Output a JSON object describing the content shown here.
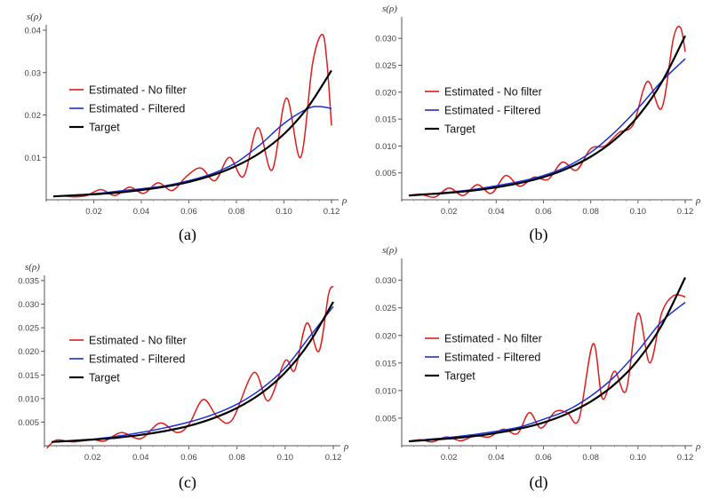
{
  "chart_data": [
    {
      "type": "line",
      "caption": "(a)",
      "xlabel": "ρ",
      "ylabel": "s(ρ)",
      "xlim": [
        0,
        0.12
      ],
      "ylim": [
        0,
        0.04
      ],
      "xticks": [
        "0.02",
        "0.04",
        "0.06",
        "0.08",
        "0.10",
        "0.12"
      ],
      "yticks": [
        "0.01",
        "0.02",
        "0.03",
        "0.04"
      ],
      "legend": [
        "Estimated - No filter",
        "Estimated - Filtered",
        "Target"
      ],
      "series": [
        {
          "name": "Estimated - No filter",
          "color": "#e01b1b",
          "x": [
            0.003,
            0.007,
            0.012,
            0.017,
            0.023,
            0.029,
            0.035,
            0.041,
            0.047,
            0.053,
            0.059,
            0.065,
            0.071,
            0.077,
            0.083,
            0.089,
            0.095,
            0.101,
            0.107,
            0.112,
            0.116,
            0.118,
            0.12
          ],
          "y": [
            0.0008,
            0.0009,
            0.0007,
            0.001,
            0.0024,
            0.001,
            0.003,
            0.0015,
            0.004,
            0.0022,
            0.0055,
            0.0075,
            0.0045,
            0.01,
            0.0055,
            0.017,
            0.007,
            0.024,
            0.01,
            0.032,
            0.039,
            0.033,
            0.0175
          ]
        },
        {
          "name": "Estimated - Filtered",
          "color": "#1a2fd6",
          "x": [
            0.003,
            0.01,
            0.02,
            0.03,
            0.04,
            0.05,
            0.06,
            0.07,
            0.08,
            0.09,
            0.1,
            0.11,
            0.115,
            0.12
          ],
          "y": [
            0.0008,
            0.001,
            0.0014,
            0.002,
            0.0026,
            0.0033,
            0.0045,
            0.0062,
            0.0088,
            0.013,
            0.018,
            0.0215,
            0.022,
            0.0215
          ]
        },
        {
          "name": "Target",
          "color": "#000000",
          "x": [
            0.003,
            0.01,
            0.02,
            0.03,
            0.04,
            0.05,
            0.06,
            0.07,
            0.08,
            0.09,
            0.1,
            0.11,
            0.12
          ],
          "y": [
            0.0008,
            0.001,
            0.0013,
            0.0017,
            0.0023,
            0.0031,
            0.0042,
            0.0058,
            0.008,
            0.0111,
            0.0155,
            0.0218,
            0.0305
          ]
        }
      ]
    },
    {
      "type": "line",
      "caption": "(b)",
      "xlabel": "ρ",
      "ylabel": "s(ρ)",
      "xlim": [
        0,
        0.12
      ],
      "ylim": [
        0,
        0.033
      ],
      "xticks": [
        "0.02",
        "0.04",
        "0.06",
        "0.08",
        "0.10",
        "0.12"
      ],
      "yticks": [
        "0.005",
        "0.010",
        "0.015",
        "0.020",
        "0.025",
        "0.030"
      ],
      "legend": [
        "Estimated - No filter",
        "Estimated - Filtered",
        "Target"
      ],
      "series": [
        {
          "name": "Estimated - No filter",
          "color": "#e01b1b",
          "x": [
            0.003,
            0.008,
            0.014,
            0.02,
            0.026,
            0.032,
            0.038,
            0.044,
            0.05,
            0.056,
            0.062,
            0.068,
            0.074,
            0.08,
            0.086,
            0.092,
            0.098,
            0.104,
            0.11,
            0.115,
            0.118,
            0.12
          ],
          "y": [
            0.0008,
            0.001,
            0.0005,
            0.0022,
            0.0008,
            0.0028,
            0.0012,
            0.0045,
            0.0025,
            0.0042,
            0.0038,
            0.007,
            0.0055,
            0.0095,
            0.01,
            0.0125,
            0.014,
            0.022,
            0.017,
            0.03,
            0.032,
            0.0275
          ]
        },
        {
          "name": "Estimated - Filtered",
          "color": "#1a2fd6",
          "x": [
            0.003,
            0.01,
            0.02,
            0.03,
            0.04,
            0.05,
            0.06,
            0.07,
            0.08,
            0.09,
            0.1,
            0.11,
            0.12
          ],
          "y": [
            0.0008,
            0.001,
            0.0014,
            0.0019,
            0.0026,
            0.0034,
            0.0045,
            0.0062,
            0.0088,
            0.0125,
            0.017,
            0.022,
            0.0262
          ]
        },
        {
          "name": "Target",
          "color": "#000000",
          "x": [
            0.003,
            0.01,
            0.02,
            0.03,
            0.04,
            0.05,
            0.06,
            0.07,
            0.08,
            0.09,
            0.1,
            0.11,
            0.12
          ],
          "y": [
            0.0008,
            0.001,
            0.0013,
            0.0017,
            0.0023,
            0.0031,
            0.0042,
            0.0058,
            0.008,
            0.0111,
            0.0155,
            0.0218,
            0.0305
          ]
        }
      ]
    },
    {
      "type": "line",
      "caption": "(c)",
      "xlabel": "ρ",
      "ylabel": "s(ρ)",
      "xlim": [
        0,
        0.12
      ],
      "ylim": [
        0,
        0.035
      ],
      "xticks": [
        "0.02",
        "0.04",
        "0.06",
        "0.08",
        "0.10",
        "0.12"
      ],
      "yticks": [
        "0.005",
        "0.010",
        "0.015",
        "0.020",
        "0.025",
        "0.030",
        "0.035"
      ],
      "legend": [
        "Estimated - No filter",
        "Estimated - Filtered",
        "Target"
      ],
      "series": [
        {
          "name": "Estimated - No filter",
          "color": "#e01b1b",
          "x": [
            0.001,
            0.005,
            0.012,
            0.02,
            0.025,
            0.032,
            0.04,
            0.048,
            0.055,
            0.06,
            0.066,
            0.072,
            0.078,
            0.087,
            0.093,
            0.1,
            0.104,
            0.109,
            0.114,
            0.118,
            0.12
          ],
          "y": [
            -0.0005,
            0.0012,
            0.0008,
            0.0013,
            0.001,
            0.0028,
            0.0015,
            0.0048,
            0.0028,
            0.0045,
            0.0098,
            0.006,
            0.0055,
            0.0155,
            0.0095,
            0.018,
            0.016,
            0.026,
            0.02,
            0.032,
            0.0338
          ]
        },
        {
          "name": "Estimated - Filtered",
          "color": "#1a2fd6",
          "x": [
            0.003,
            0.01,
            0.02,
            0.03,
            0.04,
            0.05,
            0.06,
            0.07,
            0.08,
            0.09,
            0.1,
            0.11,
            0.12
          ],
          "y": [
            0.0008,
            0.001,
            0.0014,
            0.002,
            0.0028,
            0.0038,
            0.005,
            0.0066,
            0.0088,
            0.012,
            0.0165,
            0.023,
            0.0295
          ]
        },
        {
          "name": "Target",
          "color": "#000000",
          "x": [
            0.003,
            0.01,
            0.02,
            0.03,
            0.04,
            0.05,
            0.06,
            0.07,
            0.08,
            0.09,
            0.1,
            0.11,
            0.12
          ],
          "y": [
            0.0008,
            0.001,
            0.0013,
            0.0017,
            0.0023,
            0.0031,
            0.0042,
            0.0058,
            0.008,
            0.0111,
            0.0155,
            0.0218,
            0.0305
          ]
        }
      ]
    },
    {
      "type": "line",
      "caption": "(d)",
      "xlabel": "ρ",
      "ylabel": "s(ρ)",
      "xlim": [
        0,
        0.12
      ],
      "ylim": [
        0,
        0.033
      ],
      "xticks": [
        "0.02",
        "0.04",
        "0.06",
        "0.08",
        "0.10",
        "0.12"
      ],
      "yticks": [
        "0.005",
        "0.010",
        "0.015",
        "0.020",
        "0.025",
        "0.030"
      ],
      "legend": [
        "Estimated - No filter",
        "Estimated - Filtered",
        "Target"
      ],
      "series": [
        {
          "name": "Estimated - No filter",
          "color": "#e01b1b",
          "x": [
            0.003,
            0.008,
            0.013,
            0.019,
            0.025,
            0.031,
            0.037,
            0.043,
            0.049,
            0.054,
            0.059,
            0.065,
            0.07,
            0.075,
            0.081,
            0.085,
            0.09,
            0.095,
            0.1,
            0.105,
            0.11,
            0.115,
            0.12
          ],
          "y": [
            0.0008,
            0.0011,
            0.0007,
            0.0016,
            0.0009,
            0.0018,
            0.0016,
            0.003,
            0.0022,
            0.006,
            0.0032,
            0.0062,
            0.006,
            0.0048,
            0.0185,
            0.0085,
            0.0135,
            0.01,
            0.024,
            0.015,
            0.024,
            0.0272,
            0.027
          ]
        },
        {
          "name": "Estimated - Filtered",
          "color": "#1a2fd6",
          "x": [
            0.003,
            0.01,
            0.02,
            0.03,
            0.04,
            0.05,
            0.06,
            0.07,
            0.08,
            0.09,
            0.1,
            0.11,
            0.12
          ],
          "y": [
            0.0008,
            0.0011,
            0.0015,
            0.002,
            0.0026,
            0.0034,
            0.0048,
            0.0064,
            0.009,
            0.0125,
            0.0172,
            0.0225,
            0.026
          ]
        },
        {
          "name": "Target",
          "color": "#000000",
          "x": [
            0.003,
            0.01,
            0.02,
            0.03,
            0.04,
            0.05,
            0.06,
            0.07,
            0.08,
            0.09,
            0.1,
            0.11,
            0.12
          ],
          "y": [
            0.0008,
            0.001,
            0.0013,
            0.0017,
            0.0023,
            0.0031,
            0.0042,
            0.0058,
            0.008,
            0.0111,
            0.0155,
            0.0218,
            0.0305
          ]
        }
      ]
    }
  ]
}
